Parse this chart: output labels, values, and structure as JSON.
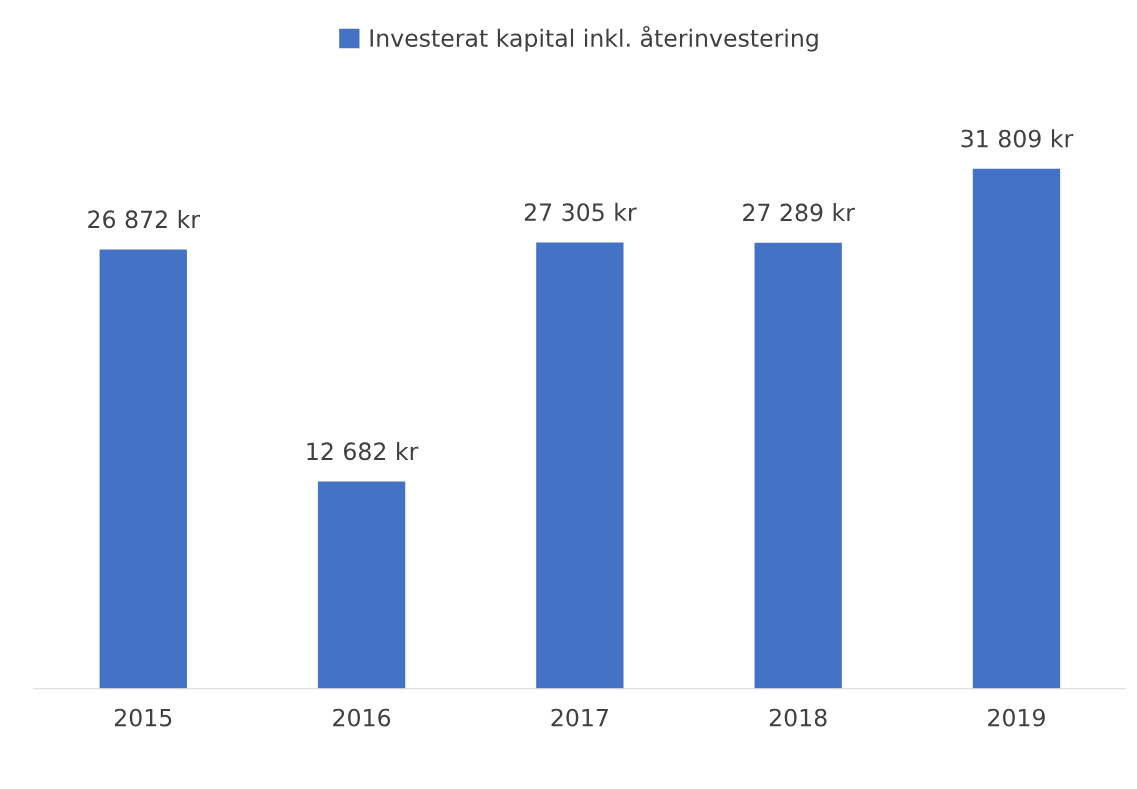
{
  "chart_data": {
    "type": "bar",
    "categories": [
      "2015",
      "2016",
      "2017",
      "2018",
      "2019"
    ],
    "series": [
      {
        "name": "Investerat kapital inkl. återinvestering",
        "color": "#4472c4",
        "values": [
          26872,
          12682,
          27305,
          27289,
          31809
        ],
        "value_labels": [
          "26 872 kr",
          "12 682 kr",
          "27 305 kr",
          "27 289 kr",
          "31 809 kr"
        ]
      }
    ],
    "legend": "top"
  }
}
